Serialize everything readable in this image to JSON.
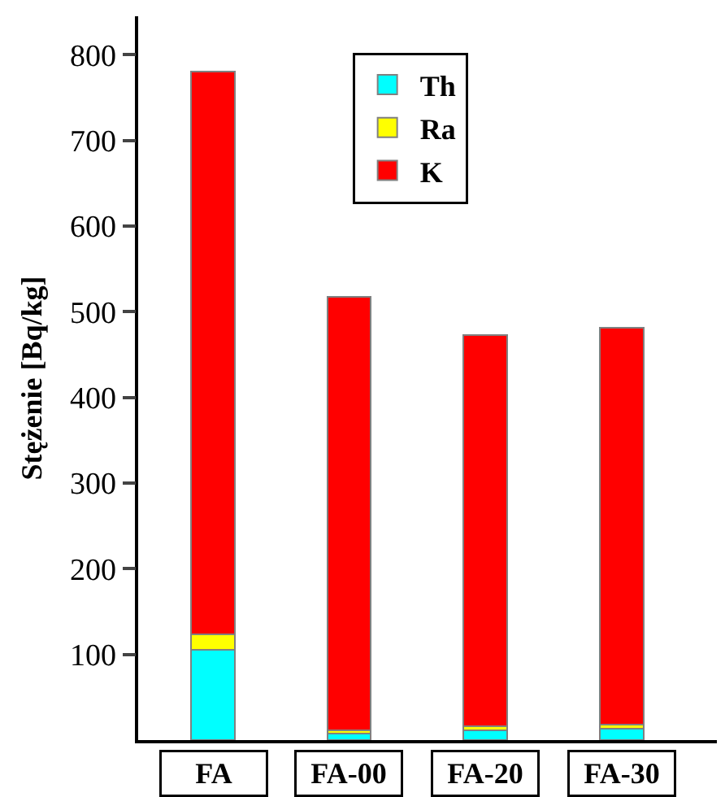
{
  "chart_data": {
    "type": "bar",
    "stacked": true,
    "ylabel": "Stężenie [Bq/kg]",
    "categories": [
      "FA",
      "FA-00",
      "FA-20",
      "FA-30"
    ],
    "series": [
      {
        "name": "Th",
        "color": "#00ffff",
        "values": [
          105,
          8,
          11,
          13
        ]
      },
      {
        "name": "Ra",
        "color": "#ffff00",
        "values": [
          18,
          3,
          5,
          5
        ]
      },
      {
        "name": "K",
        "color": "#ff0000",
        "values": [
          657,
          506,
          457,
          463
        ]
      }
    ],
    "ylim": [
      0,
      845
    ],
    "yticks": [
      100,
      200,
      300,
      400,
      500,
      600,
      700,
      800
    ],
    "legend": "top"
  }
}
